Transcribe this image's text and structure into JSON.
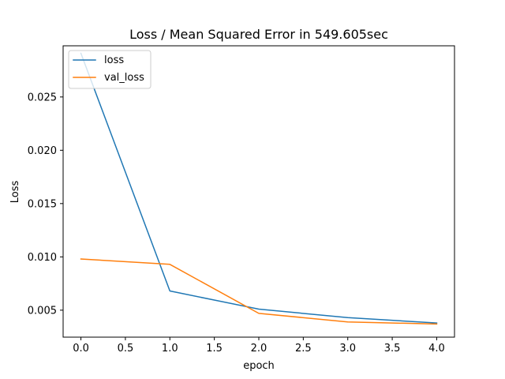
{
  "chart_data": {
    "type": "line",
    "title": "Loss / Mean Squared Error in 549.605sec",
    "xlabel": "epoch",
    "ylabel": "Loss",
    "x": [
      0,
      1,
      2,
      3,
      4
    ],
    "series": [
      {
        "name": "loss",
        "values": [
          0.0291,
          0.0068,
          0.0051,
          0.0043,
          0.0038
        ],
        "color": "#1f77b4"
      },
      {
        "name": "val_loss",
        "values": [
          0.0098,
          0.0093,
          0.0047,
          0.0039,
          0.0037
        ],
        "color": "#ff7f0e"
      }
    ],
    "xlim": [
      -0.2,
      4.2
    ],
    "ylim": [
      0.00247,
      0.0298
    ],
    "xticks": [
      0.0,
      0.5,
      1.0,
      1.5,
      2.0,
      2.5,
      3.0,
      3.5,
      4.0
    ],
    "xtick_labels": [
      "0.0",
      "0.5",
      "1.0",
      "1.5",
      "2.0",
      "2.5",
      "3.0",
      "3.5",
      "4.0"
    ],
    "yticks": [
      0.005,
      0.01,
      0.015,
      0.02,
      0.025
    ],
    "ytick_labels": [
      "0.005",
      "0.010",
      "0.015",
      "0.020",
      "0.025"
    ],
    "grid": false,
    "legend_position": "top-left"
  }
}
